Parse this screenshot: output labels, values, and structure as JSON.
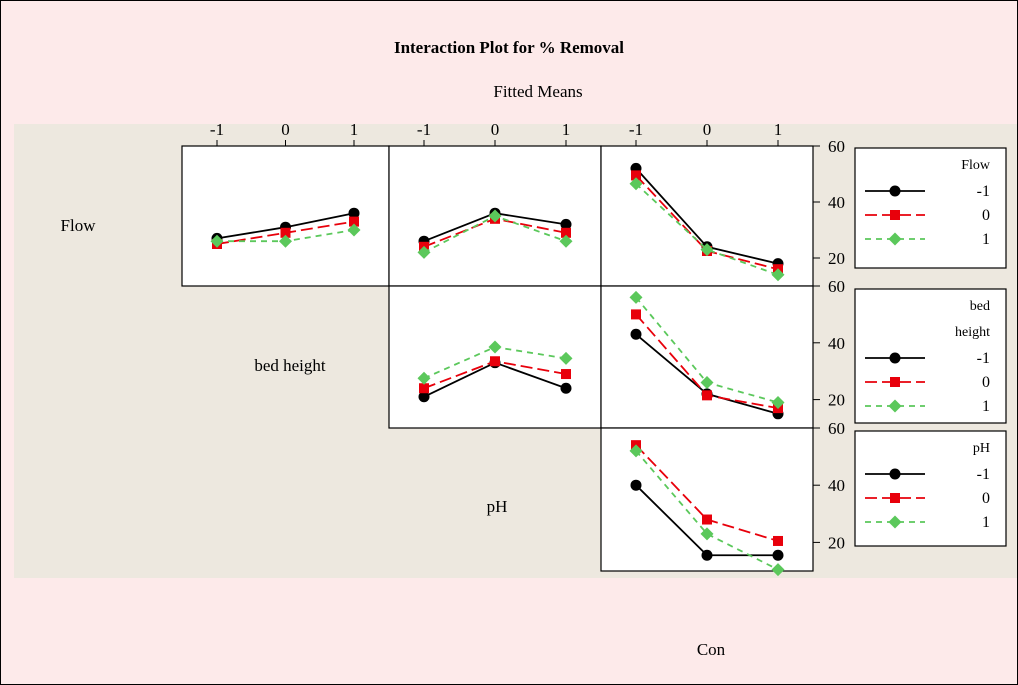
{
  "chart_data": {
    "type": "line",
    "title": "Interaction Plot for % Removal",
    "subtitle": "Fitted Means",
    "factors": [
      "Flow",
      "bed height",
      "pH",
      "Con"
    ],
    "levels": [
      "-1",
      "0",
      "1"
    ],
    "ylim": [
      10,
      60
    ],
    "yticks": [
      "20",
      "40",
      "60"
    ],
    "style": {
      "background_outer": "#fdeaea",
      "background_inner": "#ede8df",
      "series_colors": [
        "#000000",
        "#e8000b",
        "#5bc85b"
      ],
      "series_markers": [
        "circle",
        "square",
        "diamond"
      ],
      "series_dash": [
        "solid",
        "long-dash",
        "short-dash"
      ]
    },
    "legends": [
      {
        "title_lines": [
          "Flow"
        ],
        "entries": [
          "-1",
          "0",
          "1"
        ]
      },
      {
        "title_lines": [
          "bed",
          "height"
        ],
        "entries": [
          "-1",
          "0",
          "1"
        ]
      },
      {
        "title_lines": [
          "pH"
        ],
        "entries": [
          "-1",
          "0",
          "1"
        ]
      }
    ],
    "panels": [
      {
        "row": "Flow",
        "col": "bed height",
        "series": [
          {
            "values": [
              27,
              31,
              36
            ]
          },
          {
            "values": [
              25,
              29,
              33
            ]
          },
          {
            "values": [
              26,
              26,
              30
            ]
          }
        ]
      },
      {
        "row": "Flow",
        "col": "pH",
        "series": [
          {
            "values": [
              26,
              36,
              32
            ]
          },
          {
            "values": [
              24,
              34,
              29
            ]
          },
          {
            "values": [
              22,
              35,
              26
            ]
          }
        ]
      },
      {
        "row": "Flow",
        "col": "Con",
        "series": [
          {
            "values": [
              52,
              24,
              18
            ]
          },
          {
            "values": [
              49.5,
              22.5,
              16
            ]
          },
          {
            "values": [
              46.5,
              23,
              14
            ]
          }
        ]
      },
      {
        "row": "bed height",
        "col": "pH",
        "series": [
          {
            "values": [
              21,
              33,
              24
            ]
          },
          {
            "values": [
              24,
              33.5,
              29
            ]
          },
          {
            "values": [
              27.5,
              38.5,
              34.5
            ]
          }
        ]
      },
      {
        "row": "bed height",
        "col": "Con",
        "series": [
          {
            "values": [
              43,
              22,
              15
            ]
          },
          {
            "values": [
              50,
              21.5,
              17
            ]
          },
          {
            "values": [
              56,
              26,
              19
            ]
          }
        ]
      },
      {
        "row": "pH",
        "col": "Con",
        "series": [
          {
            "values": [
              40,
              15.5,
              15.5
            ]
          },
          {
            "values": [
              54,
              28,
              20.5
            ]
          },
          {
            "values": [
              52,
              23,
              10.5
            ]
          }
        ]
      }
    ]
  }
}
